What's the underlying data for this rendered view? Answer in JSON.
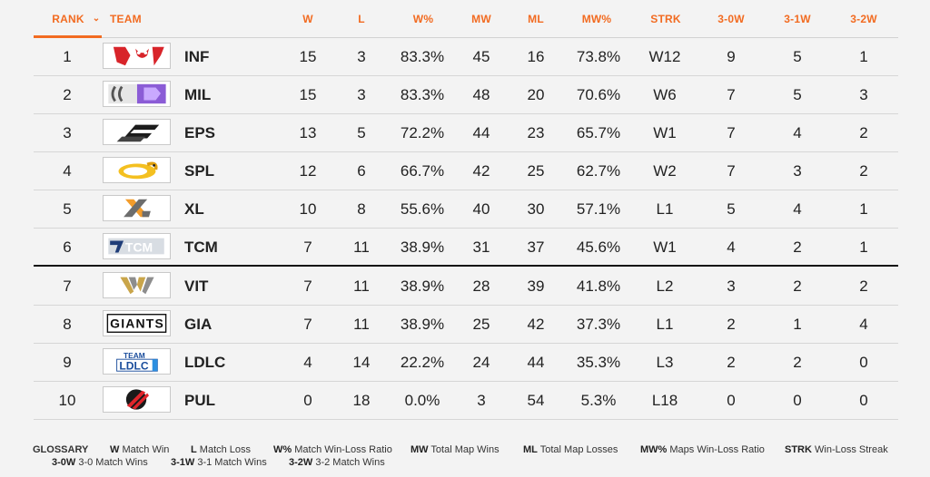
{
  "headers": {
    "rank": "RANK",
    "team": "TEAM",
    "w": "W",
    "l": "L",
    "wpct": "W%",
    "mw": "MW",
    "ml": "ML",
    "mwpct": "MW%",
    "strk": "STRK",
    "s30": "3-0W",
    "s31": "3-1W",
    "s32": "3-2W",
    "sort_icon": "chevron-down-icon"
  },
  "rows": [
    {
      "rank": "1",
      "team": "INF",
      "w": "15",
      "l": "3",
      "wpct": "83.3%",
      "mw": "45",
      "ml": "16",
      "mwpct": "73.8%",
      "strk": "W12",
      "s30": "9",
      "s31": "5",
      "s32": "1",
      "logo": "infinity-logo"
    },
    {
      "rank": "2",
      "team": "MIL",
      "w": "15",
      "l": "3",
      "wpct": "83.3%",
      "mw": "48",
      "ml": "20",
      "mwpct": "70.6%",
      "strk": "W6",
      "s30": "7",
      "s31": "5",
      "s32": "3",
      "logo": "mil-logo"
    },
    {
      "rank": "3",
      "team": "EPS",
      "w": "13",
      "l": "5",
      "wpct": "72.2%",
      "mw": "44",
      "ml": "23",
      "mwpct": "65.7%",
      "strk": "W1",
      "s30": "7",
      "s31": "4",
      "s32": "2",
      "logo": "eps-logo"
    },
    {
      "rank": "4",
      "team": "SPL",
      "w": "12",
      "l": "6",
      "wpct": "66.7%",
      "mw": "42",
      "ml": "25",
      "mwpct": "62.7%",
      "strk": "W2",
      "s30": "7",
      "s31": "3",
      "s32": "2",
      "logo": "snake-logo"
    },
    {
      "rank": "5",
      "team": "XL",
      "w": "10",
      "l": "8",
      "wpct": "55.6%",
      "mw": "40",
      "ml": "30",
      "mwpct": "57.1%",
      "strk": "L1",
      "s30": "5",
      "s31": "4",
      "s32": "1",
      "logo": "xl-logo"
    },
    {
      "rank": "6",
      "team": "TCM",
      "w": "7",
      "l": "11",
      "wpct": "38.9%",
      "mw": "31",
      "ml": "37",
      "mwpct": "45.6%",
      "strk": "W1",
      "s30": "4",
      "s31": "2",
      "s32": "1",
      "logo": "tcm-logo"
    },
    {
      "rank": "7",
      "team": "VIT",
      "w": "7",
      "l": "11",
      "wpct": "38.9%",
      "mw": "28",
      "ml": "39",
      "mwpct": "41.8%",
      "strk": "L2",
      "s30": "3",
      "s31": "2",
      "s32": "2",
      "logo": "vitality-logo"
    },
    {
      "rank": "8",
      "team": "GIA",
      "w": "7",
      "l": "11",
      "wpct": "38.9%",
      "mw": "25",
      "ml": "42",
      "mwpct": "37.3%",
      "strk": "L1",
      "s30": "2",
      "s31": "1",
      "s32": "4",
      "logo": "giants-logo"
    },
    {
      "rank": "9",
      "team": "LDLC",
      "w": "4",
      "l": "14",
      "wpct": "22.2%",
      "mw": "24",
      "ml": "44",
      "mwpct": "35.3%",
      "strk": "L3",
      "s30": "2",
      "s31": "2",
      "s32": "0",
      "logo": "ldlc-logo"
    },
    {
      "rank": "10",
      "team": "PUL",
      "w": "0",
      "l": "18",
      "wpct": "0.0%",
      "mw": "3",
      "ml": "54",
      "mwpct": "5.3%",
      "strk": "L18",
      "s30": "0",
      "s31": "0",
      "s32": "0",
      "logo": "pulsar-logo"
    }
  ],
  "glossary": {
    "title": "GLOSSARY",
    "items": [
      {
        "key": "W",
        "desc": "Match Win"
      },
      {
        "key": "L",
        "desc": "Match Loss"
      },
      {
        "key": "W%",
        "desc": "Match Win-Loss Ratio"
      },
      {
        "key": "MW",
        "desc": "Total Map Wins"
      },
      {
        "key": "ML",
        "desc": "Total Map Losses"
      },
      {
        "key": "MW%",
        "desc": "Maps Win-Loss Ratio"
      },
      {
        "key": "STRK",
        "desc": "Win-Loss Streak"
      },
      {
        "key": "3-0W",
        "desc": "3-0 Match Wins"
      },
      {
        "key": "3-1W",
        "desc": "3-1 Match Wins"
      },
      {
        "key": "3-2W",
        "desc": "3-2 Match Wins"
      }
    ]
  },
  "colors": {
    "accent": "#f26b21",
    "text": "#222222",
    "background": "#f3f3f3"
  }
}
